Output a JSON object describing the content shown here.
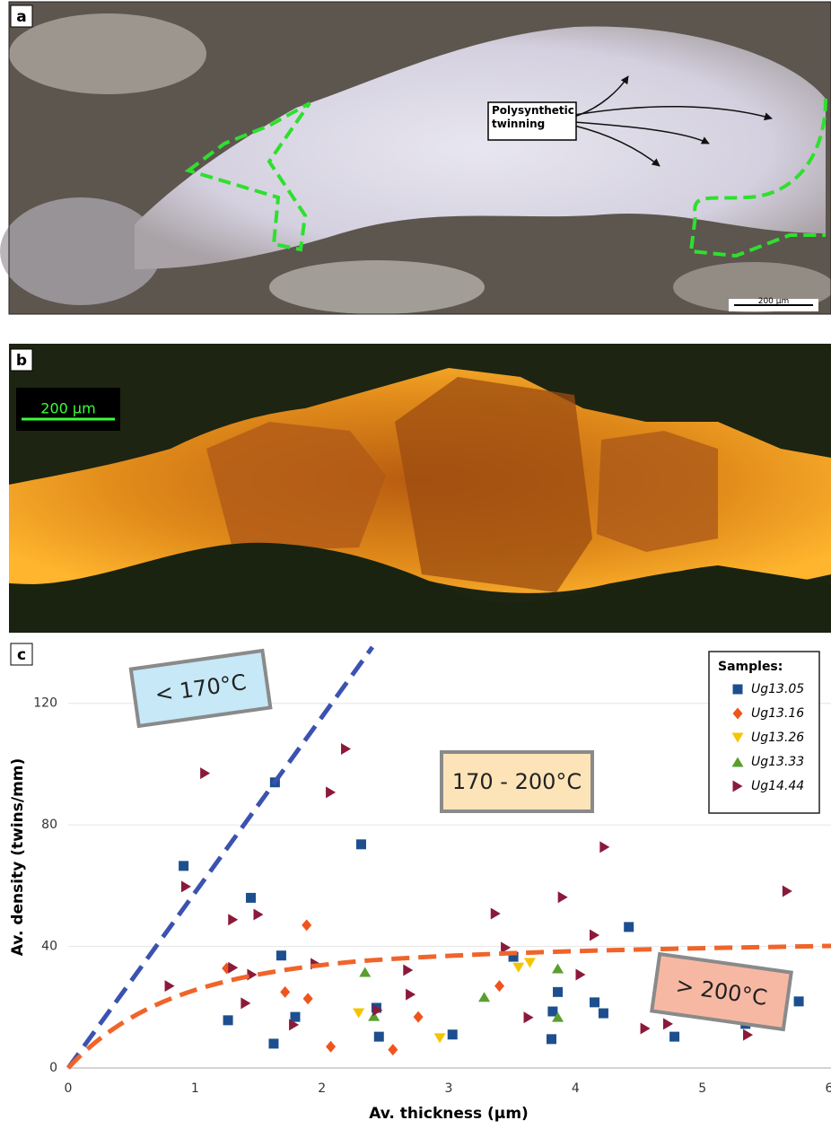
{
  "panels": [
    {
      "label": "a",
      "annotation": "Polysynthetic twinning",
      "scale_bar": "200 µm"
    },
    {
      "label": "b",
      "scale_bar": "200 µm"
    }
  ],
  "chart_data": {
    "type": "scatter",
    "panel_label": "c",
    "x_label": "Av. thickness (µm)",
    "y_label": "Av. density (twins/mm)",
    "xlim": [
      0,
      6
    ],
    "ylim": [
      0,
      140
    ],
    "xticks": [
      0,
      1,
      2,
      3,
      4,
      5,
      6
    ],
    "yticks": [
      0,
      40,
      80,
      120
    ],
    "grid": true,
    "legend_title": "Samples:",
    "legend": "upper right",
    "annotations": [
      "< 170°C",
      "170 - 200°C",
      "> 200°C"
    ],
    "series": [
      {
        "name": "Ug13.05",
        "color": "#1d4f8f",
        "marker": "square",
        "x": [
          0.91,
          1.63,
          2.31,
          1.44,
          1.68,
          1.26,
          1.79,
          1.62,
          2.45,
          2.43,
          3.03,
          3.51,
          3.82,
          3.86,
          3.81,
          4.15,
          4.22,
          4.42,
          4.78,
          5.34,
          5.76
        ],
        "values": [
          66.5,
          94,
          73.6,
          56,
          37,
          15.7,
          16.8,
          8,
          10.3,
          19.8,
          11,
          36.6,
          18.6,
          25,
          9.5,
          21.6,
          18,
          46.4,
          10.3,
          14.5,
          21.9
        ]
      },
      {
        "name": "Ug13.16",
        "color": "#f0541e",
        "marker": "diamond",
        "x": [
          1.25,
          1.88,
          1.89,
          1.71,
          2.07,
          2.56,
          2.76,
          3.4
        ],
        "values": [
          32.8,
          47,
          22.8,
          25,
          7,
          6,
          16.8,
          27
        ]
      },
      {
        "name": "Ug13.26",
        "color": "#f5c400",
        "marker": "triangle-down",
        "x": [
          2.29,
          2.93,
          3.55,
          3.64
        ],
        "values": [
          18,
          9.8,
          33,
          34.6
        ]
      },
      {
        "name": "Ug13.33",
        "color": "#5a9e2f",
        "marker": "triangle-up",
        "x": [
          2.34,
          2.41,
          3.28,
          3.86,
          3.86
        ],
        "values": [
          31.6,
          17.1,
          23.4,
          32.8,
          16.8
        ]
      },
      {
        "name": "Ug14.44",
        "color": "#8b1a3a",
        "marker": "triangle-right",
        "x": [
          1.08,
          0.93,
          0.8,
          2.19,
          2.07,
          1.3,
          1.5,
          1.3,
          1.4,
          1.45,
          1.78,
          1.95,
          2.44,
          2.68,
          2.7,
          3.37,
          3.45,
          3.63,
          3.9,
          4.04,
          4.15,
          4.23,
          4.55,
          4.73,
          5.36,
          5.67
        ],
        "values": [
          97,
          59.7,
          27,
          105,
          90.7,
          48.8,
          50.5,
          33,
          21.3,
          30.7,
          14.2,
          34.3,
          19,
          32.2,
          24.2,
          50.8,
          39.6,
          16.6,
          56.2,
          30.7,
          43.7,
          72.7,
          13,
          14.5,
          10.9,
          58.2
        ]
      }
    ]
  }
}
